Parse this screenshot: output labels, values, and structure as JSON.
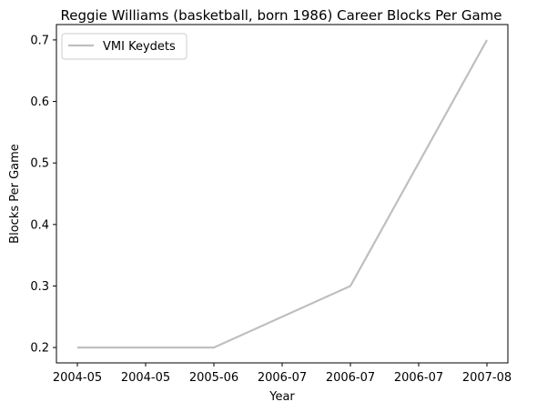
{
  "chart_data": {
    "type": "line",
    "title": "Reggie Williams (basketball, born 1986) Career Blocks Per Game",
    "xlabel": "Year",
    "ylabel": "Blocks Per Game",
    "x_tick_labels": [
      "2004-05",
      "2004-05",
      "2005-06",
      "2006-07",
      "2006-07",
      "2006-07",
      "2007-08"
    ],
    "y_ticks": [
      0.2,
      0.3,
      0.4,
      0.5,
      0.6,
      0.7
    ],
    "ylim": [
      0.175,
      0.725
    ],
    "grid": false,
    "legend_position": "upper-left",
    "series": [
      {
        "name": "VMI Keydets",
        "color": "#bfbfbf",
        "x": [
          "2004-05",
          "2005-06",
          "2006-07",
          "2007-08"
        ],
        "values": [
          0.2,
          0.2,
          0.3,
          0.7
        ]
      }
    ]
  }
}
